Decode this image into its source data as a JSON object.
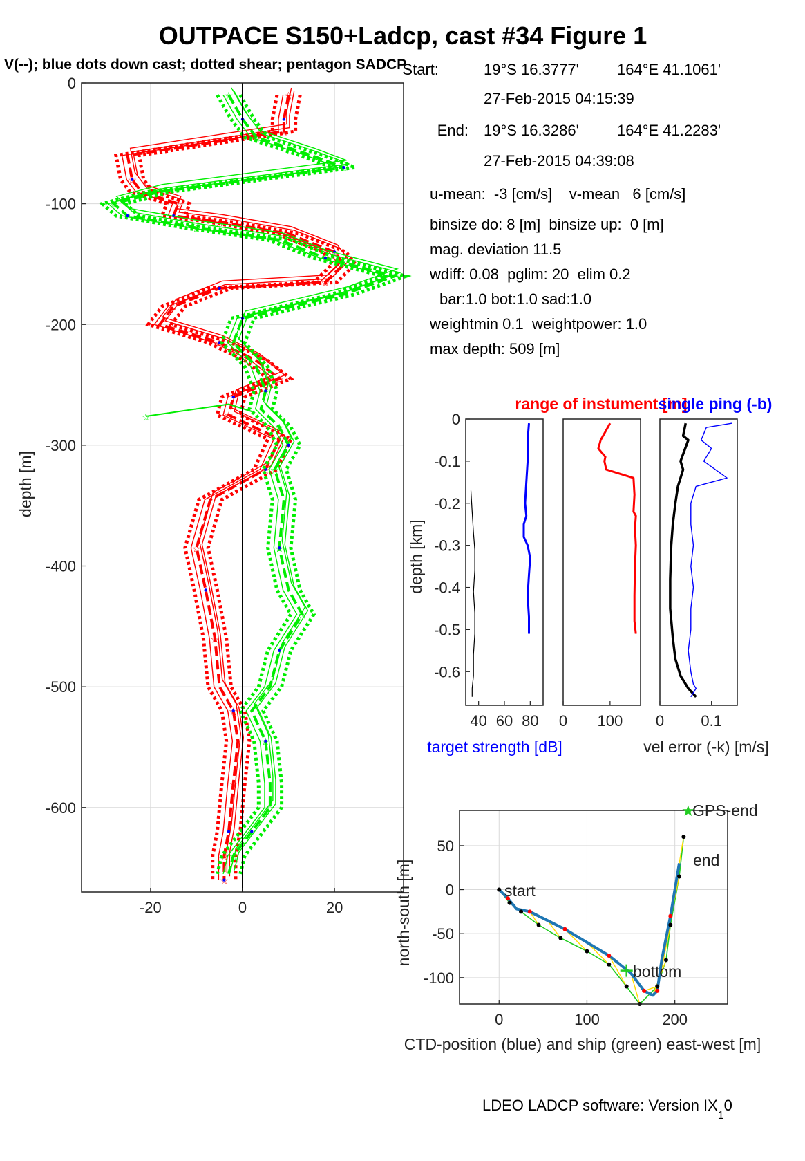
{
  "title": "OUTPACE S150+Ladcp, cast #34  Figure 1",
  "subtitle": "V(--); blue dots down cast; dotted shear; pentagon SADCP",
  "info": {
    "start_label": "Start:",
    "start_lat": "19°S 16.3777'",
    "start_lon": "164°E 41.1061'",
    "start_time": "27-Feb-2015 04:15:39",
    "end_label": "End:",
    "end_lat": "19°S 16.3286'",
    "end_lon": "164°E 41.2283'",
    "end_time": "27-Feb-2015 04:39:08",
    "mean": "u-mean:  -3 [cm/s]    v-mean   6 [cm/s]",
    "binsize": "binsize do: 8 [m]  binsize up:  0 [m]",
    "magdev": "mag. deviation 11.5",
    "wdiff": "wdiff: 0.08  pglim: 20  elim 0.2",
    "bar": "bar:1.0 bot:1.0 sad:1.0",
    "weight": "weightmin 0.1  weightpower: 1.0",
    "maxdepth": "max depth: 509 [m]"
  },
  "footer": "LDEO LADCP software: Version IX",
  "footer_sub": "1",
  "footer_end": "0",
  "colors": {
    "u": "#ff0000",
    "v": "#00ee00",
    "blue": "#0000ff",
    "track": "#1f77b4",
    "ship": "#22cc22",
    "link": "#ffdd00"
  },
  "chart_data": [
    {
      "type": "line",
      "name": "velocity-profile",
      "ylabel": "depth [m]",
      "xlim": [
        -35,
        35
      ],
      "ylim": [
        -670,
        0
      ],
      "xticks": [
        "-20",
        "0",
        "20"
      ],
      "yticks": [
        "0",
        "-100",
        "-200",
        "-300",
        "-400",
        "-500",
        "-600"
      ],
      "series": [
        {
          "color": "red",
          "x": [
            10,
            9,
            9,
            -25,
            -24,
            -22,
            -14,
            -15,
            -5,
            10,
            20,
            22,
            18,
            -5,
            -15,
            -18,
            -5,
            3,
            8,
            -2,
            -3,
            8,
            5,
            -7,
            -10,
            -8,
            -6,
            -5,
            -2,
            -1,
            -2,
            -3,
            -4,
            -4,
            -4
          ],
          "y": [
            -10,
            -30,
            -40,
            -60,
            -80,
            -90,
            -100,
            -110,
            -115,
            -125,
            -140,
            -150,
            -165,
            -170,
            -185,
            -200,
            -215,
            -230,
            -245,
            -260,
            -275,
            -295,
            -320,
            -345,
            -385,
            -420,
            -460,
            -500,
            -520,
            -545,
            -580,
            -620,
            -640,
            -655,
            -660
          ]
        },
        {
          "color": "green",
          "x": [
            -3,
            0,
            3,
            15,
            22,
            -18,
            -28,
            -25,
            -10,
            8,
            18,
            33,
            22,
            0,
            -2,
            3,
            5,
            4,
            8,
            10,
            7,
            9,
            8,
            10,
            13,
            8,
            6,
            2,
            5,
            6,
            6,
            2,
            -2,
            -3
          ],
          "y": [
            -10,
            -30,
            -45,
            -60,
            -70,
            -90,
            -100,
            -110,
            -120,
            -130,
            -145,
            -160,
            -175,
            -195,
            -215,
            -235,
            -255,
            -270,
            -285,
            -300,
            -320,
            -345,
            -385,
            -420,
            -440,
            -470,
            -500,
            -520,
            -545,
            -580,
            -600,
            -620,
            -640,
            -655
          ]
        }
      ]
    },
    {
      "type": "line",
      "name": "target-strength",
      "xlabel": "target strength [dB]",
      "ylabel": "depth [km]",
      "xlim": [
        30,
        90
      ],
      "ylim": [
        -0.68,
        0
      ],
      "xticks": [
        "40",
        "60",
        "80"
      ],
      "yticks": [
        "0",
        "-0.1",
        "-0.2",
        "-0.3",
        "-0.4",
        "-0.5",
        "-0.6"
      ],
      "series": [
        {
          "color": "blue",
          "x": [
            79,
            78,
            78,
            77,
            76,
            77,
            75,
            75,
            78,
            80,
            79,
            78,
            79,
            79
          ],
          "y": [
            -0.01,
            -0.05,
            -0.1,
            -0.15,
            -0.2,
            -0.23,
            -0.25,
            -0.28,
            -0.3,
            -0.33,
            -0.37,
            -0.42,
            -0.47,
            -0.51
          ]
        },
        {
          "color": "black",
          "x": [
            34,
            35,
            36,
            37,
            37,
            36,
            37,
            37,
            36,
            36,
            35,
            35
          ],
          "y": [
            -0.17,
            -0.22,
            -0.27,
            -0.31,
            -0.36,
            -0.41,
            -0.46,
            -0.51,
            -0.56,
            -0.61,
            -0.64,
            -0.66
          ]
        }
      ]
    },
    {
      "type": "line",
      "name": "instrument-range",
      "title": "range of instument [m]",
      "xlim": [
        0,
        165
      ],
      "ylim": [
        -0.68,
        0
      ],
      "xticks": [
        "0",
        "100"
      ],
      "series": [
        {
          "color": "red",
          "x": [
            100,
            90,
            80,
            75,
            90,
            88,
            92,
            150,
            152,
            150,
            155,
            153,
            155,
            153,
            152,
            152,
            155
          ],
          "y": [
            -0.01,
            -0.03,
            -0.05,
            -0.07,
            -0.09,
            -0.1,
            -0.12,
            -0.14,
            -0.18,
            -0.22,
            -0.23,
            -0.26,
            -0.3,
            -0.35,
            -0.42,
            -0.48,
            -0.51
          ]
        }
      ]
    },
    {
      "type": "line",
      "name": "velocity-error",
      "title": "single ping (-b)",
      "xlabel": "vel error (-k) [m/s]",
      "xlim": [
        0,
        0.15
      ],
      "ylim": [
        -0.68,
        0
      ],
      "xticks": [
        "0",
        "0.1"
      ],
      "series": [
        {
          "color": "black",
          "x": [
            0.05,
            0.045,
            0.055,
            0.04,
            0.045,
            0.035,
            0.03,
            0.025,
            0.022,
            0.02,
            0.02,
            0.025,
            0.03,
            0.04,
            0.055,
            0.07
          ],
          "y": [
            -0.01,
            -0.04,
            -0.05,
            -0.1,
            -0.12,
            -0.16,
            -0.2,
            -0.25,
            -0.3,
            -0.38,
            -0.45,
            -0.52,
            -0.57,
            -0.61,
            -0.64,
            -0.66
          ]
        },
        {
          "color": "blue",
          "x": [
            0.14,
            0.09,
            0.08,
            0.1,
            0.085,
            0.13,
            0.07,
            0.06,
            0.06,
            0.065,
            0.06,
            0.065,
            0.06,
            0.06,
            0.055,
            0.06,
            0.065,
            0.07,
            0.06
          ],
          "y": [
            -0.01,
            -0.02,
            -0.05,
            -0.07,
            -0.1,
            -0.14,
            -0.16,
            -0.2,
            -0.25,
            -0.3,
            -0.35,
            -0.4,
            -0.45,
            -0.5,
            -0.55,
            -0.6,
            -0.63,
            -0.64,
            -0.66
          ]
        }
      ]
    },
    {
      "type": "line",
      "name": "position",
      "xlabel": "CTD-position (blue) and ship (green) east-west [m]",
      "ylabel": "north-south [m]",
      "xlim": [
        -45,
        260
      ],
      "ylim": [
        -130,
        90
      ],
      "xticks": [
        "0",
        "100",
        "200"
      ],
      "yticks": [
        "50",
        "0",
        "-50",
        "-100"
      ],
      "labels": {
        "start": "start",
        "end": "end",
        "bottom": "bottom",
        "gps_end": "GPS-end"
      },
      "series": [
        {
          "color": "blue",
          "x": [
            0,
            10,
            20,
            35,
            55,
            75,
            100,
            125,
            150,
            165,
            175,
            180,
            185,
            195,
            205
          ],
          "y": [
            0,
            -10,
            -22,
            -25,
            -35,
            -45,
            -60,
            -75,
            -95,
            -115,
            -120,
            -115,
            -80,
            -30,
            30
          ]
        },
        {
          "color": "green",
          "x": [
            0,
            12,
            25,
            45,
            70,
            100,
            125,
            145,
            160,
            180,
            190,
            195,
            205,
            210
          ],
          "y": [
            0,
            -15,
            -25,
            -40,
            -55,
            -70,
            -85,
            -110,
            -130,
            -110,
            -80,
            -40,
            15,
            60
          ]
        }
      ]
    }
  ]
}
